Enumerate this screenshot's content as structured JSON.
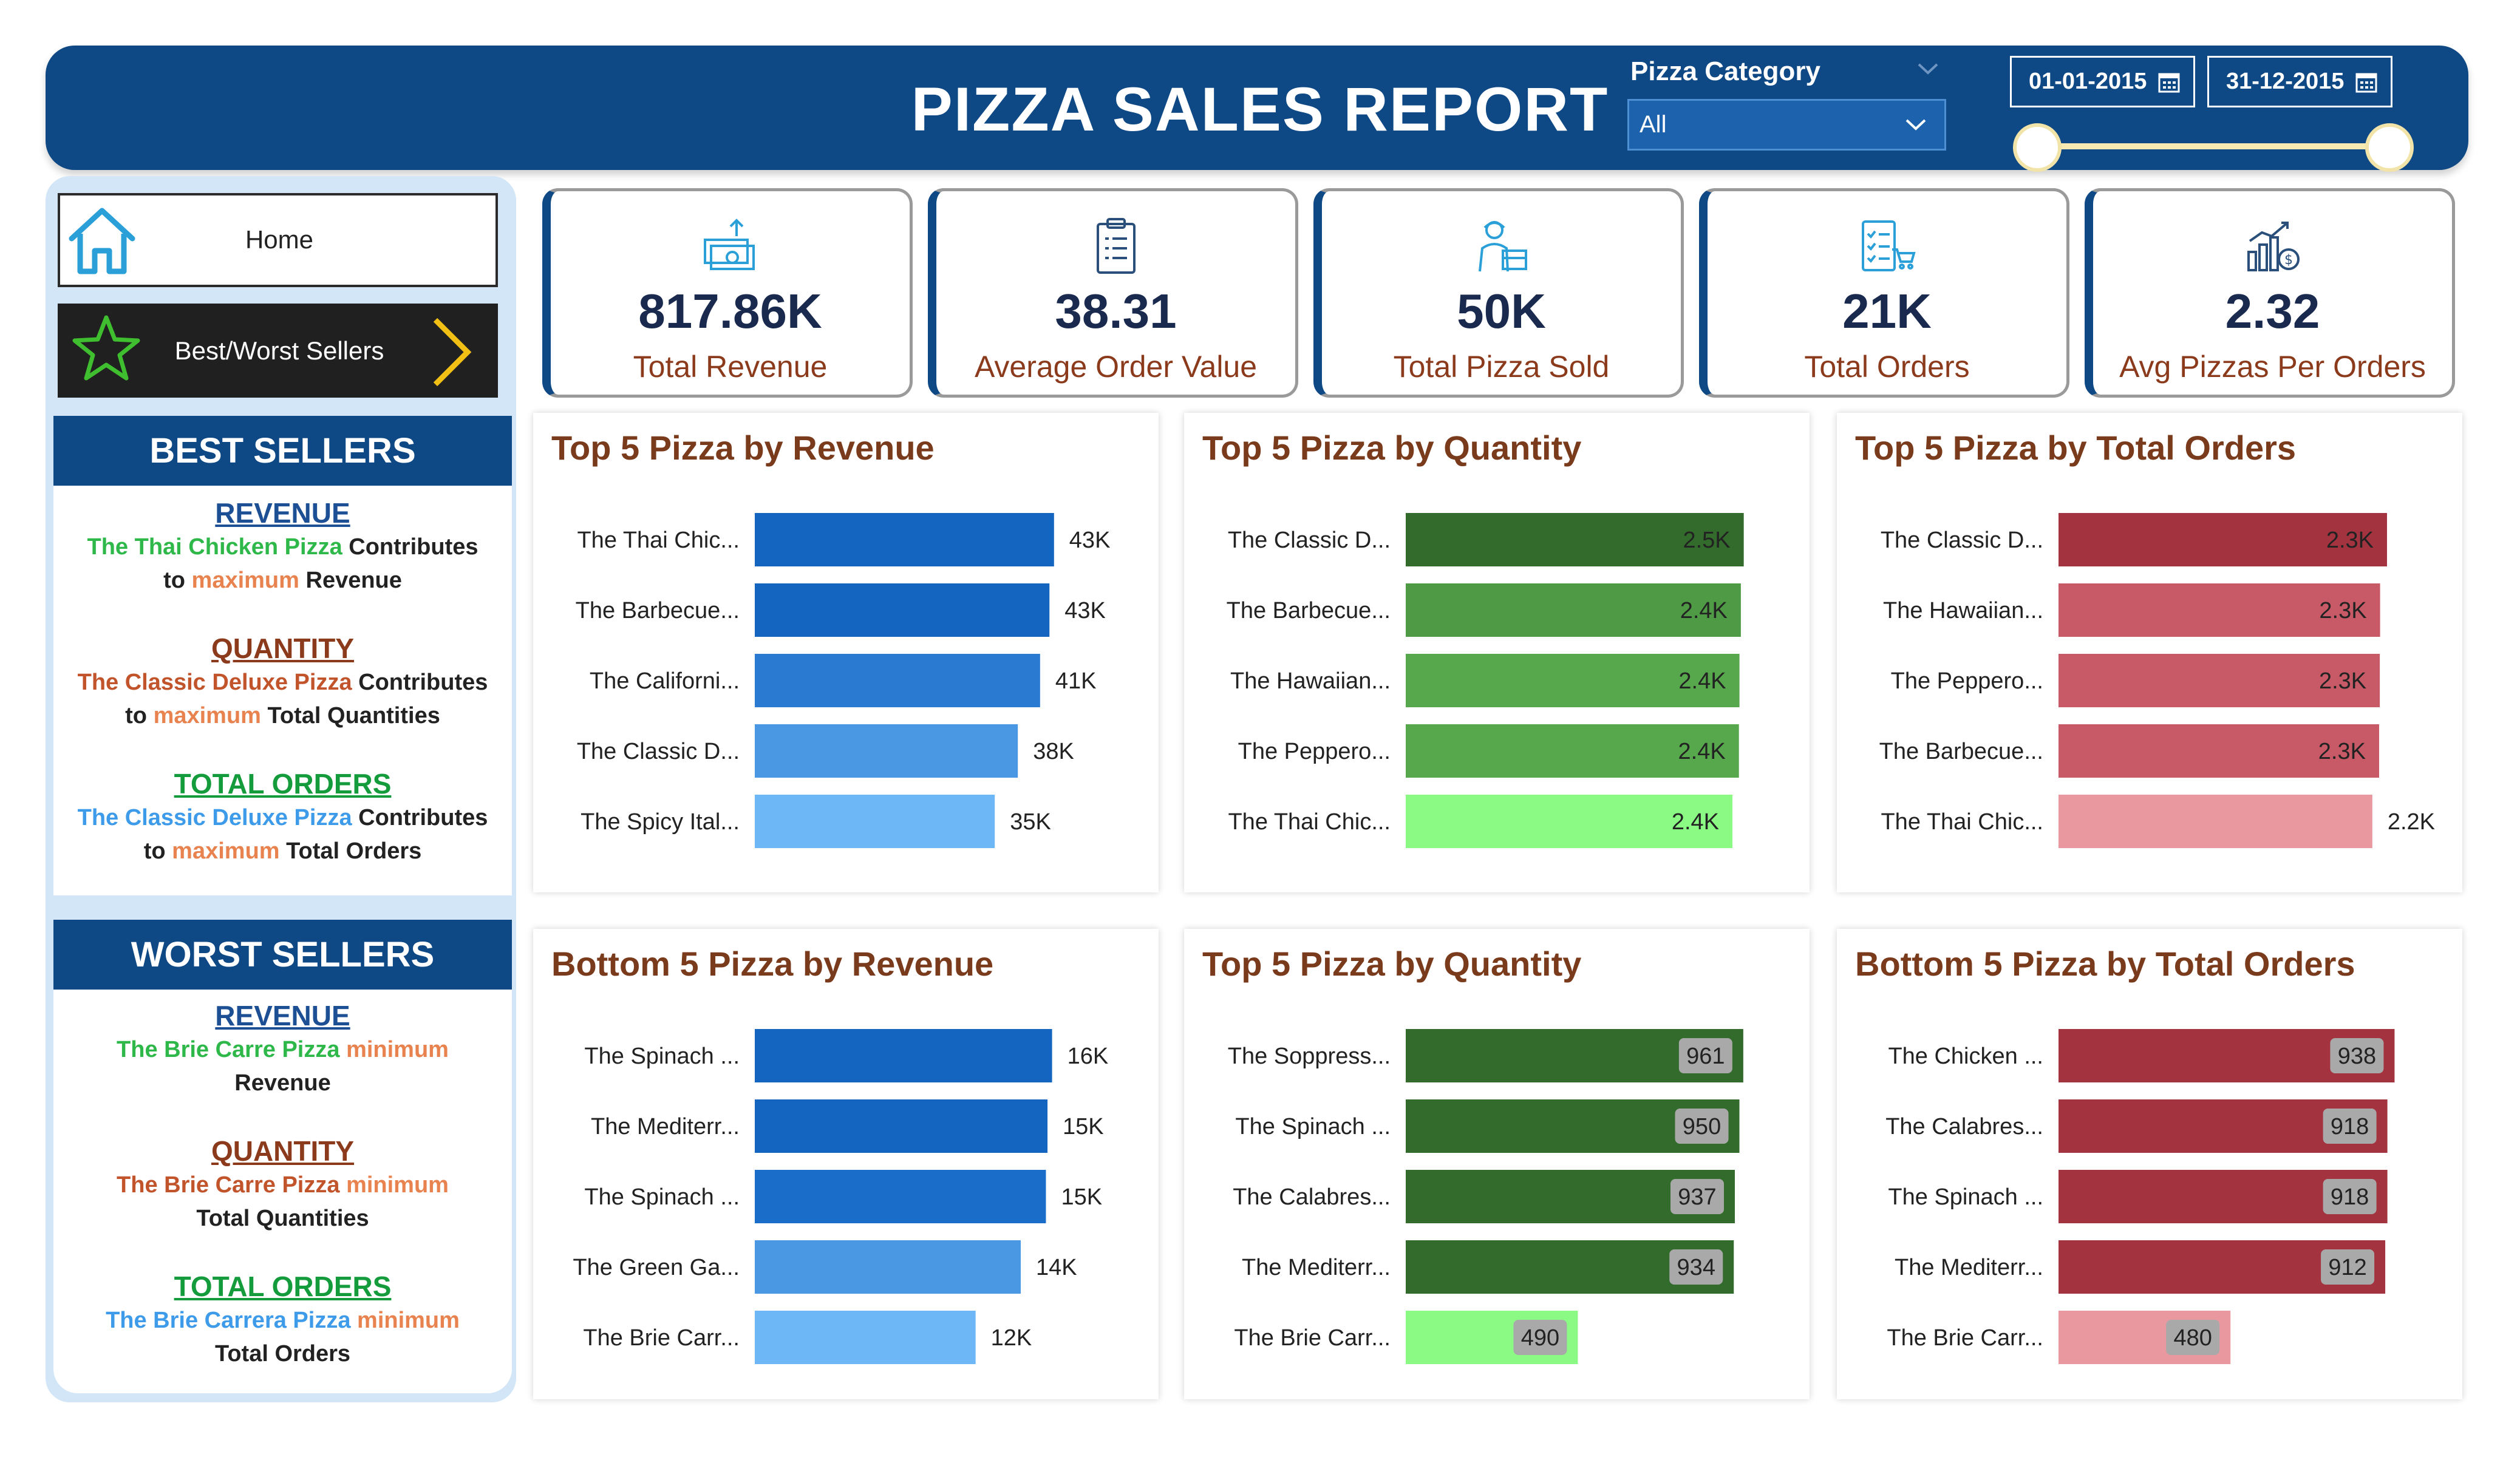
{
  "header": {
    "title": "PIZZA SALES REPORT",
    "category_label": "Pizza Category",
    "category_value": "All",
    "date_start": "01-01-2015",
    "date_end": "31-12-2015"
  },
  "nav": {
    "home_label": "Home",
    "best_worst_label": "Best/Worst Sellers"
  },
  "kpis": [
    {
      "value": "817.86K",
      "label": "Total Revenue"
    },
    {
      "value": "38.31",
      "label": "Average Order Value"
    },
    {
      "value": "50K",
      "label": "Total Pizza Sold"
    },
    {
      "value": "21K",
      "label": "Total Orders"
    },
    {
      "value": "2.32",
      "label": "Avg Pizzas Per Orders"
    }
  ],
  "best_sellers": {
    "heading": "BEST SELLERS",
    "revenue": {
      "title": "REVENUE",
      "pizza": "The Thai Chicken Pizza",
      "contributes": "Contributes",
      "to": "to",
      "maximum": "maximum",
      "metric": "Revenue"
    },
    "quantity": {
      "title": "QUANTITY",
      "pizza": "The Classic Deluxe Pizza",
      "contributes": "Contributes",
      "to": "to",
      "maximum": "maximum",
      "metric": "Total Quantities"
    },
    "orders": {
      "title": "TOTAL ORDERS",
      "pizza": "The Classic Deluxe Pizza",
      "contributes": "Contributes",
      "to": "to",
      "maximum": "maximum",
      "metric": "Total Orders"
    }
  },
  "worst_sellers": {
    "heading": "WORST SELLERS",
    "revenue": {
      "title": "REVENUE",
      "pizza": "The Brie Carre Pizza",
      "minimum": "minimum",
      "metric": "Revenue"
    },
    "quantity": {
      "title": "QUANTITY",
      "pizza": "The Brie Carre Pizza",
      "minimum": "minimum",
      "metric": "Total Quantities"
    },
    "orders": {
      "title": "TOTAL ORDERS",
      "pizza": "The Brie Carrera Pizza",
      "minimum": "minimum",
      "metric": "Total Orders"
    }
  },
  "colors": {
    "header_blue": "#0f4985",
    "title_brown": "#7a3b1c"
  },
  "chart_data": [
    {
      "id": "top-revenue",
      "type": "bar",
      "orientation": "horizontal",
      "title": "Top 5 Pizza by Revenue",
      "categories": [
        "The Thai Chic...",
        "The Barbecue...",
        "The Californi...",
        "The Classic D...",
        "The Spicy Ital..."
      ],
      "values": [
        43434,
        42768,
        41410,
        38180,
        34831
      ],
      "labels": [
        "43K",
        "43K",
        "41K",
        "38K",
        "35K"
      ],
      "label_position": "outside",
      "colors": [
        "#1365c0",
        "#1365c0",
        "#2a7ad2",
        "#4a97e4",
        "#6db7f7"
      ],
      "xlim": [
        0,
        52000
      ]
    },
    {
      "id": "top-quantity",
      "type": "bar",
      "orientation": "horizontal",
      "title": "Top 5 Pizza by Quantity",
      "categories": [
        "The Classic D...",
        "The Barbecue...",
        "The Hawaiian...",
        "The Peppero...",
        "The Thai Chic..."
      ],
      "values": [
        2453,
        2432,
        2422,
        2418,
        2371
      ],
      "labels": [
        "2.5K",
        "2.4K",
        "2.4K",
        "2.4K",
        "2.4K"
      ],
      "label_position": "inside",
      "colors": [
        "#336b2c",
        "#4f9a44",
        "#57a84c",
        "#57a84c",
        "#8afa84"
      ],
      "xlim": [
        0,
        2600
      ]
    },
    {
      "id": "top-orders",
      "type": "bar",
      "orientation": "horizontal",
      "title": "Top 5 Pizza by Total Orders",
      "categories": [
        "The Classic D...",
        "The Hawaiian...",
        "The Peppero...",
        "The Barbecue...",
        "The Thai Chic..."
      ],
      "values": [
        2329,
        2280,
        2278,
        2273,
        2225
      ],
      "labels": [
        "2.3K",
        "2.3K",
        "2.3K",
        "2.3K",
        "2.2K"
      ],
      "label_position": "inside",
      "label_outside_last": true,
      "colors": [
        "#a3333f",
        "#c75a66",
        "#c75a66",
        "#c75a66",
        "#ea98a0"
      ],
      "xlim": [
        0,
        2540
      ]
    },
    {
      "id": "bottom-revenue",
      "type": "bar",
      "orientation": "horizontal",
      "title": "Bottom 5 Pizza by Revenue",
      "categories": [
        "The Spinach ...",
        "The Mediterr...",
        "The Spinach ...",
        "The Green Ga...",
        "The Brie Carr..."
      ],
      "values": [
        15600,
        15360,
        15277,
        13956,
        11588
      ],
      "labels": [
        "16K",
        "15K",
        "15K",
        "14K",
        "12K"
      ],
      "label_position": "outside",
      "colors": [
        "#1365c0",
        "#1365c0",
        "#1a6dc8",
        "#4a97e4",
        "#6db7f7"
      ],
      "xlim": [
        0,
        18800
      ]
    },
    {
      "id": "bottom-quantity",
      "type": "bar",
      "orientation": "horizontal",
      "title": "Top 5 Pizza by Quantity",
      "categories": [
        "The Soppress...",
        "The Spinach ...",
        "The Calabres...",
        "The Mediterr...",
        "The Brie Carr..."
      ],
      "values": [
        961,
        950,
        937,
        934,
        490
      ],
      "labels": [
        "961",
        "950",
        "937",
        "934",
        "490"
      ],
      "label_position": "inside-badge",
      "colors": [
        "#336b2c",
        "#336b2c",
        "#336b2c",
        "#336b2c",
        "#8afa84"
      ],
      "xlim": [
        0,
        1020
      ]
    },
    {
      "id": "bottom-orders",
      "type": "bar",
      "orientation": "horizontal",
      "title": "Bottom 5 Pizza by Total Orders",
      "categories": [
        "The Chicken ...",
        "The Calabres...",
        "The Spinach ...",
        "The Mediterr...",
        "The Brie Carr..."
      ],
      "values": [
        938,
        918,
        918,
        912,
        480
      ],
      "labels": [
        "938",
        "918",
        "918",
        "912",
        "480"
      ],
      "label_position": "inside-badge",
      "colors": [
        "#a3333f",
        "#a3333f",
        "#a3333f",
        "#a3333f",
        "#ea98a0"
      ],
      "xlim": [
        0,
        1000
      ]
    }
  ]
}
